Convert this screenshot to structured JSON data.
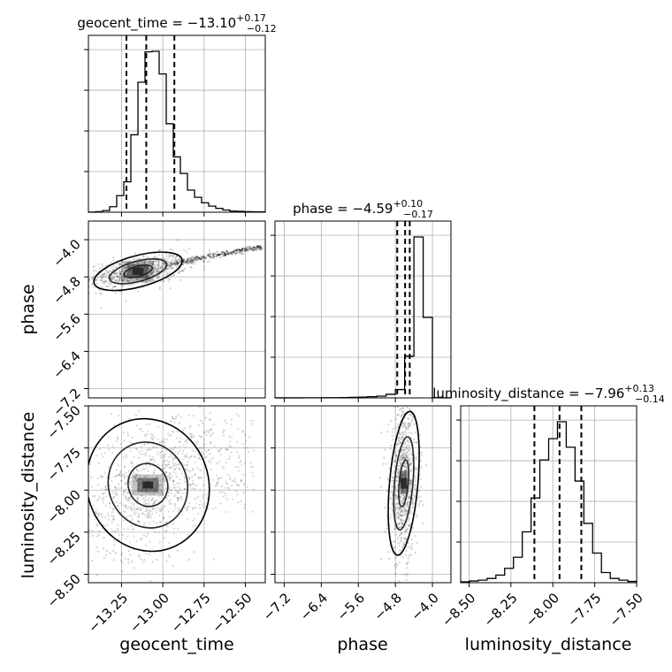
{
  "figure": {
    "params": [
      "geocent_time",
      "phase",
      "luminosity_distance"
    ]
  },
  "chart_data": {
    "type": "corner",
    "params": [
      {
        "name": "geocent_time",
        "range": [
          -13.45,
          -12.38
        ],
        "ticks": [
          -13.25,
          -13.0,
          -12.75,
          -12.5
        ],
        "tick_labels": [
          "−13.25",
          "−13.00",
          "−12.75",
          "−12.50"
        ],
        "title": {
          "prefix": "geocent_time = ",
          "median": "−13.10",
          "plus": "+0.17",
          "minus": "−0.12"
        },
        "quantiles": [
          -13.22,
          -13.1,
          -12.93
        ],
        "histogram": [
          0.1,
          1,
          3,
          10,
          30,
          55,
          140,
          235,
          290,
          291,
          250,
          160,
          100,
          70,
          40,
          27,
          17,
          11,
          7,
          4,
          2,
          1.5,
          1,
          0.8,
          0.6
        ]
      },
      {
        "name": "phase",
        "range": [
          -7.4,
          -3.6
        ],
        "ticks": [
          -7.2,
          -6.4,
          -5.6,
          -4.8,
          -4.0
        ],
        "tick_labels": [
          "−7.2",
          "−6.4",
          "−5.6",
          "−4.8",
          "−4.0"
        ],
        "title": {
          "prefix": "phase = ",
          "median": "−4.59",
          "plus": "+0.10",
          "minus": "−0.17"
        },
        "quantiles": [
          -4.76,
          -4.59,
          -4.49
        ],
        "histogram": [
          0.1,
          0.1,
          0.1,
          0.15,
          0.2,
          0.3,
          0.4,
          0.6,
          0.8,
          1.2,
          2,
          3,
          6,
          14,
          70,
          270,
          135,
          0.5,
          0.1
        ]
      },
      {
        "name": "luminosity_distance",
        "range": [
          -8.55,
          -7.5
        ],
        "ticks": [
          -8.5,
          -8.25,
          -8.0,
          -7.75,
          -7.5
        ],
        "tick_labels": [
          "−8.50",
          "−8.25",
          "−8.00",
          "−7.75",
          "−7.50"
        ],
        "title": {
          "prefix": "luminosity_distance = ",
          "median": "−7.96",
          "plus": "+0.13",
          "minus": "−0.14"
        },
        "quantiles": [
          -8.11,
          -7.96,
          -7.83
        ],
        "histogram": [
          1,
          2,
          3,
          5,
          9,
          17,
          30,
          60,
          100,
          145,
          170,
          190,
          160,
          120,
          70,
          35,
          12,
          5,
          3,
          1.5
        ]
      }
    ],
    "grid": true
  }
}
